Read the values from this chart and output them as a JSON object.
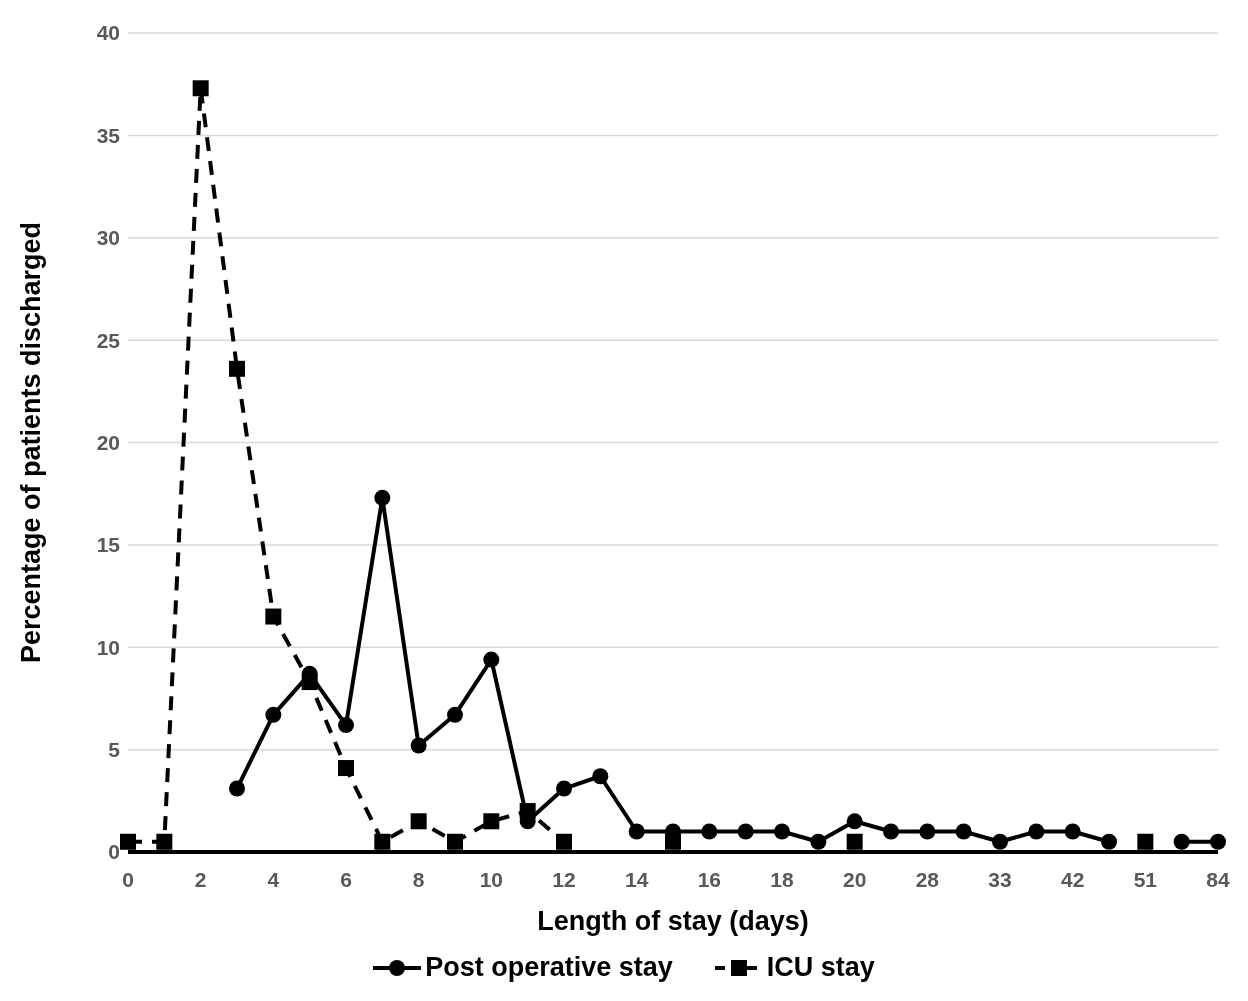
{
  "chart_data": {
    "type": "line",
    "xlabel": "Length of stay (days)",
    "ylabel": "Percentage of patients discharged",
    "categories": [
      "0",
      null,
      "2",
      null,
      "4",
      null,
      "6",
      null,
      "8",
      null,
      "10",
      null,
      "12",
      null,
      "14",
      null,
      "16",
      null,
      "18",
      null,
      "20",
      null,
      "28",
      null,
      "33",
      null,
      "42",
      null,
      "51",
      null,
      "84"
    ],
    "series": [
      {
        "name": "Post operative stay",
        "color": "#000000",
        "marker": "circle",
        "line_style": "solid",
        "values": [
          null,
          null,
          null,
          3.1,
          6.7,
          8.7,
          6.2,
          17.3,
          5.2,
          6.7,
          9.4,
          1.5,
          3.1,
          3.7,
          1.0,
          1.0,
          1.0,
          1.0,
          1.0,
          0.5,
          1.5,
          1.0,
          1.0,
          1.0,
          0.5,
          1.0,
          1.0,
          0.5,
          null,
          0.5,
          0.5
        ]
      },
      {
        "name": "ICU stay",
        "color": "#000000",
        "marker": "square",
        "line_style": "dashed",
        "values": [
          0.5,
          0.5,
          37.3,
          23.6,
          11.5,
          8.3,
          4.1,
          0.5,
          1.5,
          0.5,
          1.5,
          2.0,
          0.5,
          null,
          null,
          0.5,
          null,
          null,
          null,
          null,
          0.5,
          null,
          null,
          null,
          null,
          null,
          null,
          null,
          0.5,
          null,
          null
        ]
      }
    ],
    "ylim": [
      0,
      40
    ],
    "yticks": [
      0,
      5,
      10,
      15,
      20,
      25,
      30,
      35,
      40
    ],
    "grid": "y",
    "legend": "bottom"
  }
}
